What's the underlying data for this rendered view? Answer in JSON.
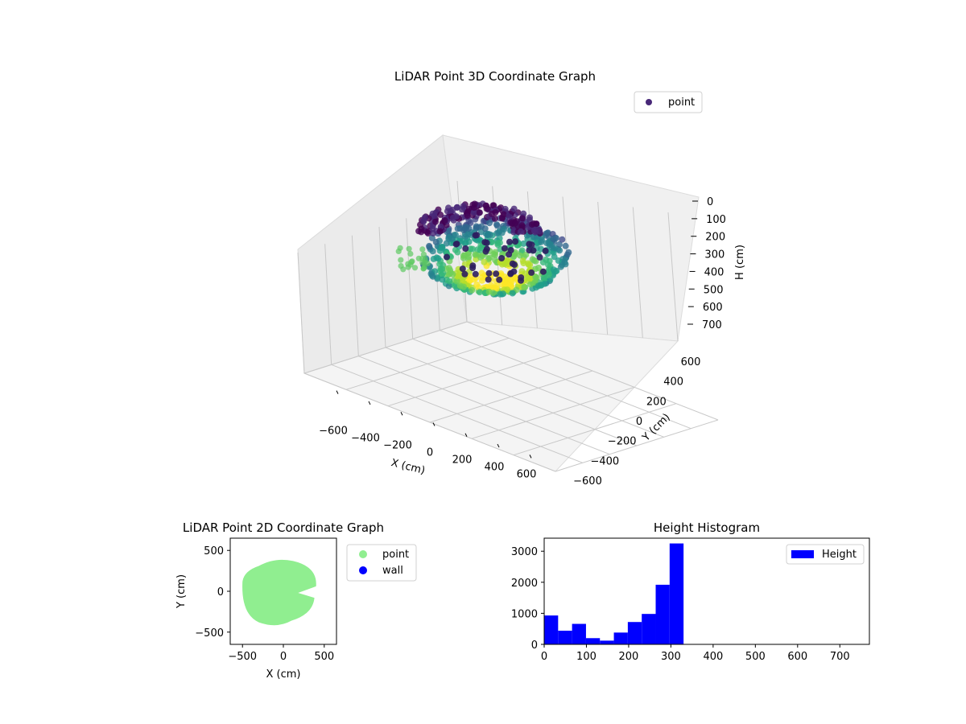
{
  "chart_data": [
    {
      "type": "scatter",
      "title": "LiDAR Point 3D Coordinate Graph",
      "xlabel": "X (cm)",
      "ylabel": "Y (cm)",
      "zlabel": "H (cm)",
      "x_ticks": [
        "−600",
        "−400",
        "−200",
        "0",
        "200",
        "400",
        "600"
      ],
      "y_ticks": [
        "−600",
        "−400",
        "−200",
        "0",
        "200",
        "400",
        "600"
      ],
      "z_ticks": [
        "0",
        "100",
        "200",
        "300",
        "400",
        "500",
        "600",
        "700"
      ],
      "xlim": [
        -650,
        650
      ],
      "ylim": [
        -650,
        650
      ],
      "zlim": [
        0,
        750
      ],
      "z_inverted": true,
      "colormap": "viridis",
      "legend": [
        {
          "label": "point",
          "color": "#482878"
        }
      ],
      "legend_position": "top-right",
      "grid": true
    },
    {
      "type": "scatter",
      "title": "LiDAR Point 2D Coordinate Graph",
      "xlabel": "X (cm)",
      "ylabel": "Y (cm)",
      "x_ticks": [
        "−500",
        "0",
        "500"
      ],
      "y_ticks": [
        "500",
        "0",
        "−500"
      ],
      "xlim": [
        -650,
        650
      ],
      "ylim": [
        -650,
        650
      ],
      "series": [
        {
          "name": "point",
          "color": "#90ee90"
        },
        {
          "name": "wall",
          "color": "#0000ff"
        }
      ],
      "legend_position": "outside-right"
    },
    {
      "type": "bar",
      "title": "Height Histogram",
      "xlabel": "",
      "ylabel": "",
      "x_ticks": [
        "0",
        "100",
        "200",
        "300",
        "400",
        "500",
        "600",
        "700"
      ],
      "y_ticks": [
        "0",
        "1000",
        "2000",
        "3000"
      ],
      "xlim": [
        0,
        770
      ],
      "ylim": [
        0,
        3420
      ],
      "bin_width": 33,
      "bin_start": 0,
      "values": [
        930,
        440,
        660,
        200,
        120,
        380,
        720,
        980,
        1920,
        3250
      ],
      "color": "#0000ff",
      "series": [
        {
          "name": "Height",
          "color": "#0000ff"
        }
      ],
      "legend_position": "top-right"
    }
  ]
}
